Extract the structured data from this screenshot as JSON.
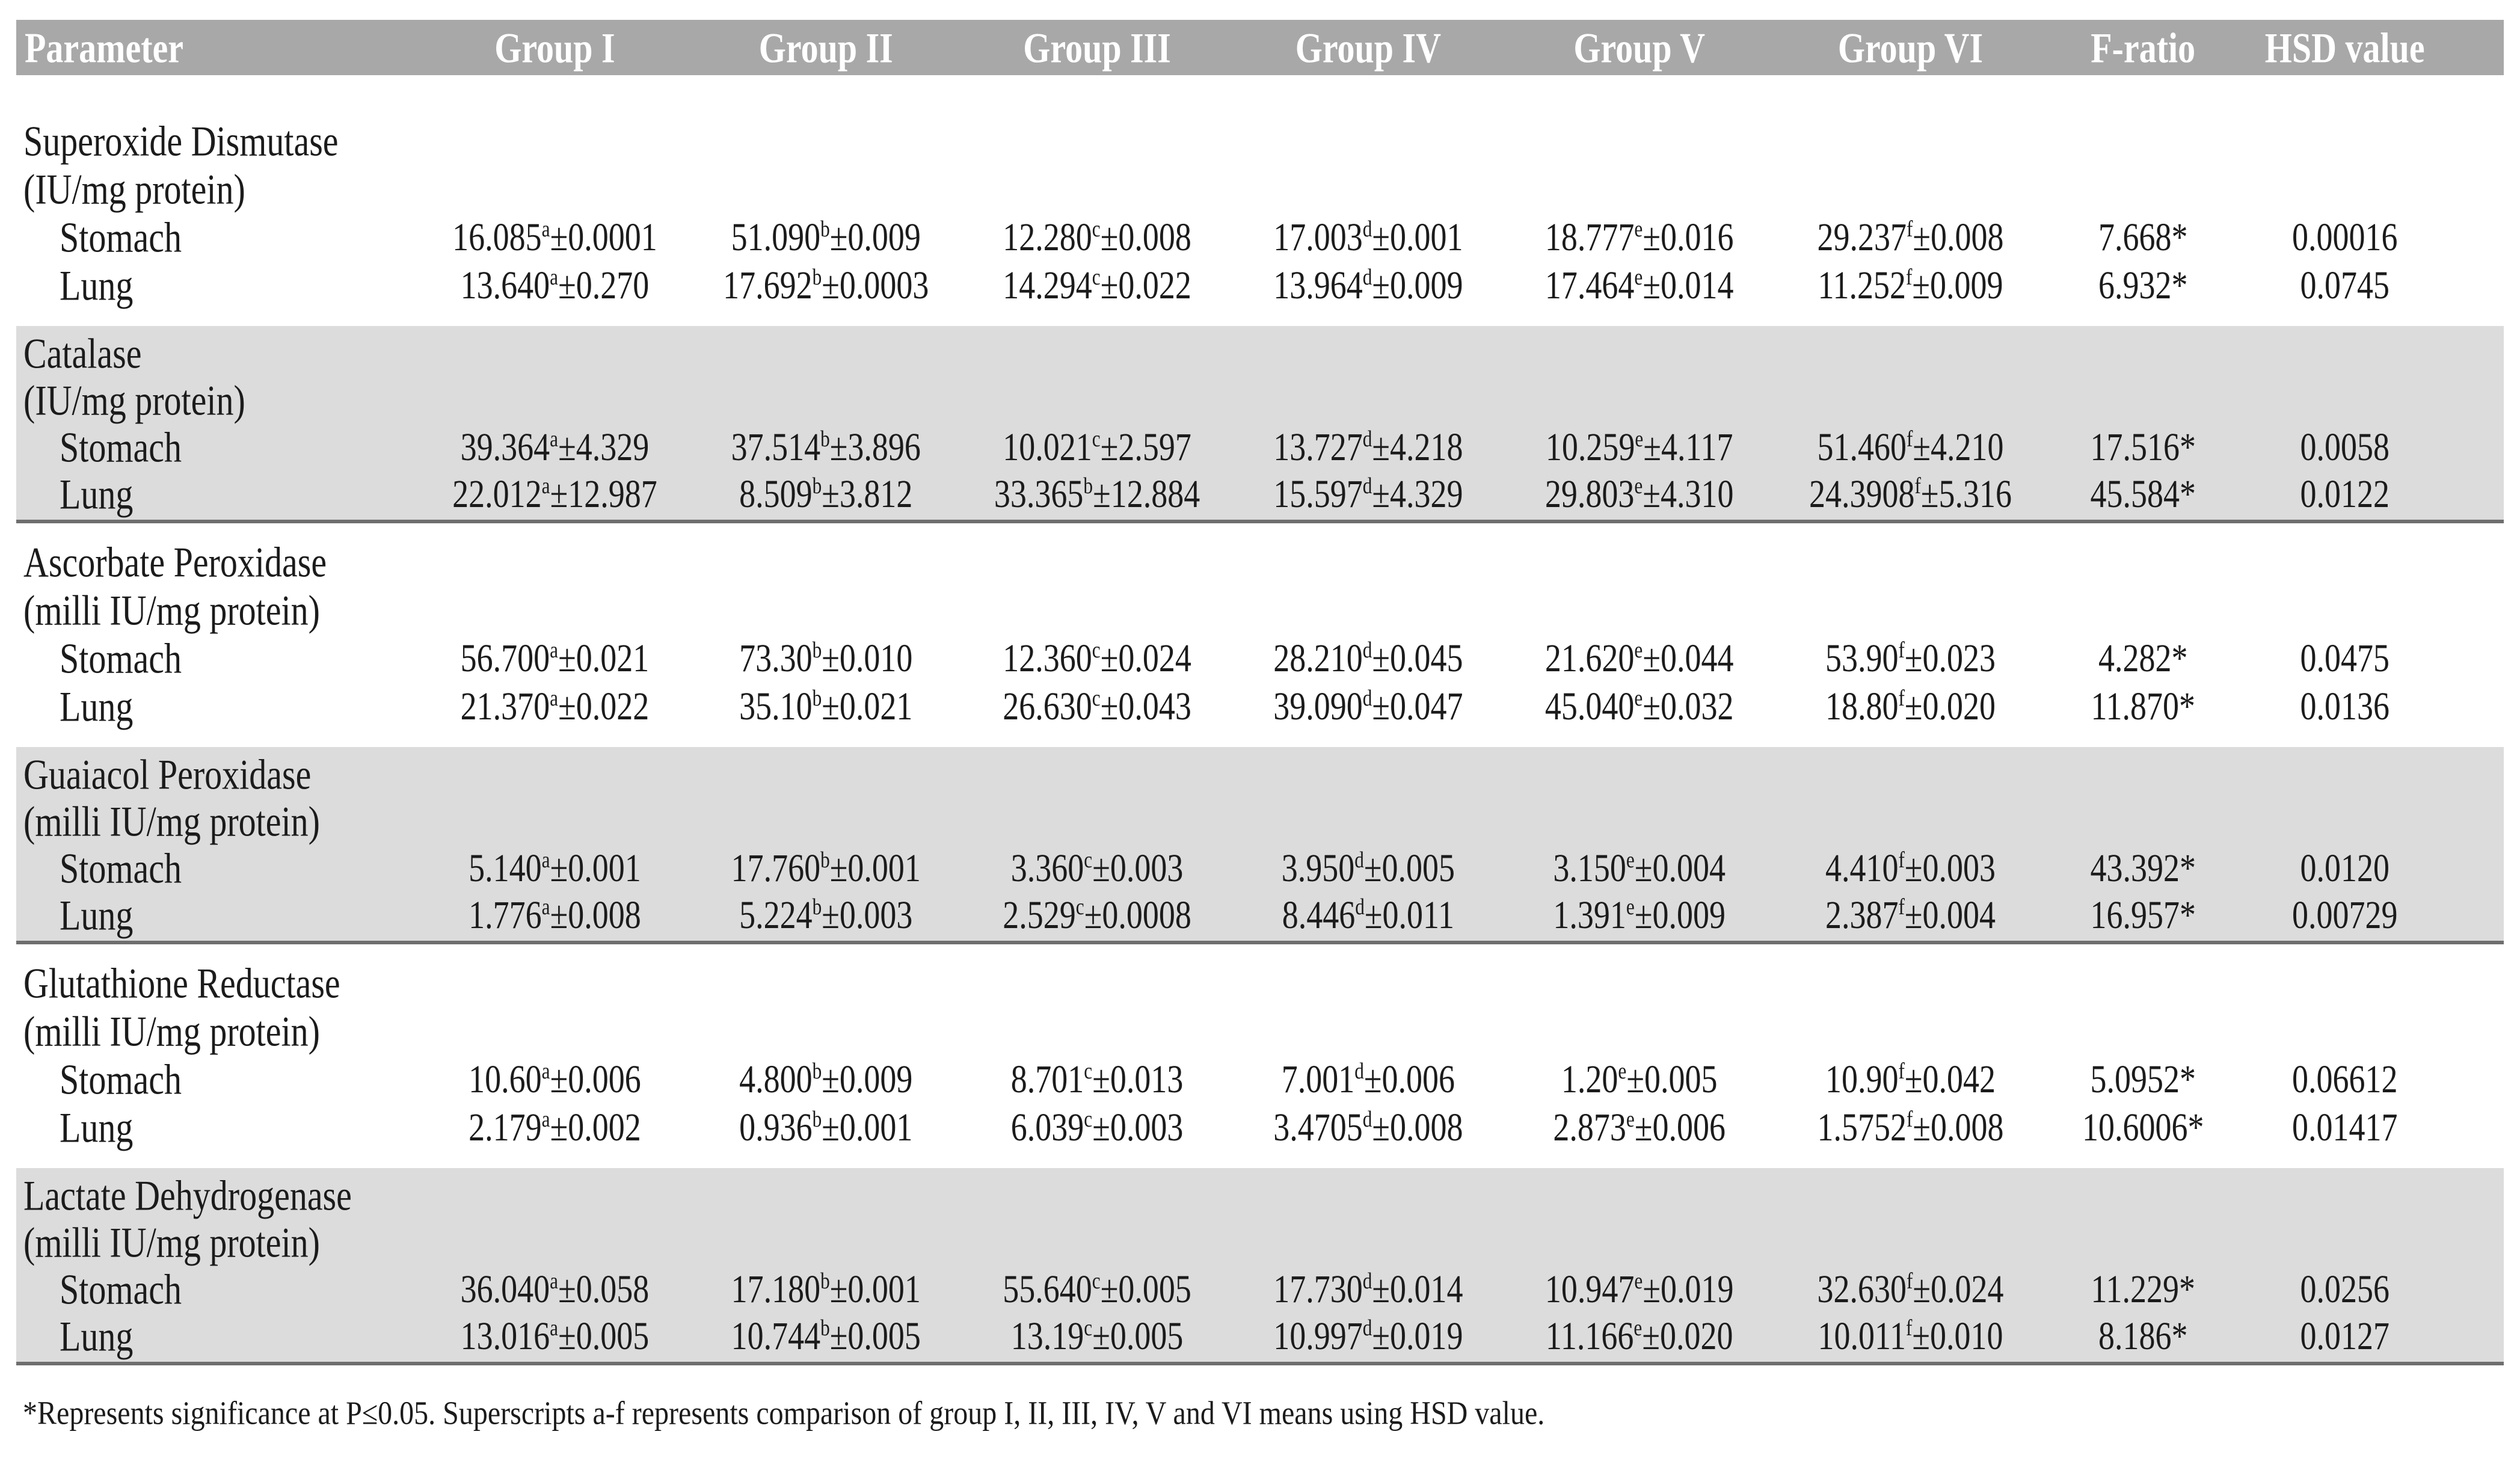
{
  "header": {
    "columns": [
      "Parameter",
      "Group I",
      "Group II",
      "Group III",
      "Group IV",
      "Group V",
      "Group VI",
      "F-ratio",
      "HSD value"
    ]
  },
  "sections": [
    {
      "name": "Superoxide Dismutase",
      "unit": "(IU/mg protein)",
      "shaded": false,
      "rows": [
        {
          "label": "Stomach",
          "values": [
            {
              "mean": "16.085",
              "sup": "a",
              "sd": "±0.0001"
            },
            {
              "mean": "51.090",
              "sup": "b",
              "sd": "±0.009"
            },
            {
              "mean": "12.280",
              "sup": "c",
              "sd": "±0.008"
            },
            {
              "mean": "17.003",
              "sup": "d",
              "sd": "±0.001"
            },
            {
              "mean": "18.777",
              "sup": "e",
              "sd": "±0.016"
            },
            {
              "mean": "29.237",
              "sup": "f",
              "sd": "±0.008"
            }
          ],
          "f_ratio": "7.668*",
          "hsd": "0.00016"
        },
        {
          "label": "Lung",
          "values": [
            {
              "mean": "13.640",
              "sup": "a",
              "sd": "±0.270"
            },
            {
              "mean": "17.692",
              "sup": "b",
              "sd": "±0.0003"
            },
            {
              "mean": "14.294",
              "sup": "c",
              "sd": "±0.022"
            },
            {
              "mean": "13.964",
              "sup": "d",
              "sd": "±0.009"
            },
            {
              "mean": "17.464",
              "sup": "e",
              "sd": "±0.014"
            },
            {
              "mean": "11.252",
              "sup": "f",
              "sd": "±0.009"
            }
          ],
          "f_ratio": "6.932*",
          "hsd": "0.0745"
        }
      ]
    },
    {
      "name": "Catalase",
      "unit": "(IU/mg protein)",
      "shaded": true,
      "rows": [
        {
          "label": "Stomach",
          "values": [
            {
              "mean": "39.364",
              "sup": "a",
              "sd": "±4.329"
            },
            {
              "mean": "37.514",
              "sup": "b",
              "sd": "±3.896"
            },
            {
              "mean": "10.021",
              "sup": "c",
              "sd": "±2.597"
            },
            {
              "mean": "13.727",
              "sup": "d",
              "sd": "±4.218"
            },
            {
              "mean": "10.259",
              "sup": "e",
              "sd": "±4.117"
            },
            {
              "mean": "51.460",
              "sup": "f",
              "sd": "±4.210"
            }
          ],
          "f_ratio": "17.516*",
          "hsd": "0.0058"
        },
        {
          "label": "Lung",
          "values": [
            {
              "mean": "22.012",
              "sup": "a",
              "sd": "±12.987"
            },
            {
              "mean": "8.509",
              "sup": "b",
              "sd": "±3.812"
            },
            {
              "mean": "33.365",
              "sup": "b",
              "sd": "±12.884"
            },
            {
              "mean": "15.597",
              "sup": "d",
              "sd": "±4.329"
            },
            {
              "mean": "29.803",
              "sup": "e",
              "sd": "±4.310"
            },
            {
              "mean": "24.3908",
              "sup": "f",
              "sd": "±5.316"
            }
          ],
          "f_ratio": "45.584*",
          "hsd": "0.0122"
        }
      ]
    },
    {
      "name": "Ascorbate Peroxidase",
      "unit": "(milli IU/mg protein)",
      "shaded": false,
      "rows": [
        {
          "label": "Stomach",
          "values": [
            {
              "mean": "56.700",
              "sup": "a",
              "sd": "±0.021"
            },
            {
              "mean": "73.30",
              "sup": "b",
              "sd": "±0.010"
            },
            {
              "mean": "12.360",
              "sup": "c",
              "sd": "±0.024"
            },
            {
              "mean": "28.210",
              "sup": "d",
              "sd": "±0.045"
            },
            {
              "mean": "21.620",
              "sup": "e",
              "sd": "±0.044"
            },
            {
              "mean": "53.90",
              "sup": "f",
              "sd": "±0.023"
            }
          ],
          "f_ratio": "4.282*",
          "hsd": "0.0475"
        },
        {
          "label": "Lung",
          "values": [
            {
              "mean": "21.370",
              "sup": "a",
              "sd": "±0.022"
            },
            {
              "mean": "35.10",
              "sup": "b",
              "sd": "±0.021"
            },
            {
              "mean": "26.630",
              "sup": "c",
              "sd": "±0.043"
            },
            {
              "mean": "39.090",
              "sup": "d",
              "sd": "±0.047"
            },
            {
              "mean": "45.040",
              "sup": "e",
              "sd": "±0.032"
            },
            {
              "mean": "18.80",
              "sup": "f",
              "sd": "±0.020"
            }
          ],
          "f_ratio": "11.870*",
          "hsd": "0.0136"
        }
      ]
    },
    {
      "name": "Guaiacol Peroxidase",
      "unit": "(milli IU/mg protein)",
      "shaded": true,
      "rows": [
        {
          "label": "Stomach",
          "values": [
            {
              "mean": "5.140",
              "sup": "a",
              "sd": "±0.001"
            },
            {
              "mean": "17.760",
              "sup": "b",
              "sd": "±0.001"
            },
            {
              "mean": "3.360",
              "sup": "c",
              "sd": "±0.003"
            },
            {
              "mean": "3.950",
              "sup": "d",
              "sd": "±0.005"
            },
            {
              "mean": "3.150",
              "sup": "e",
              "sd": "±0.004"
            },
            {
              "mean": "4.410",
              "sup": "f",
              "sd": "±0.003"
            }
          ],
          "f_ratio": "43.392*",
          "hsd": "0.0120"
        },
        {
          "label": "Lung",
          "values": [
            {
              "mean": "1.776",
              "sup": "a",
              "sd": "±0.008"
            },
            {
              "mean": "5.224",
              "sup": "b",
              "sd": "±0.003"
            },
            {
              "mean": "2.529",
              "sup": "c",
              "sd": "±0.0008"
            },
            {
              "mean": "8.446",
              "sup": "d",
              "sd": "±0.011"
            },
            {
              "mean": "1.391",
              "sup": "e",
              "sd": "±0.009"
            },
            {
              "mean": "2.387",
              "sup": "f",
              "sd": "±0.004"
            }
          ],
          "f_ratio": "16.957*",
          "hsd": "0.00729"
        }
      ]
    },
    {
      "name": "Glutathione Reductase",
      "unit": "(milli IU/mg protein)",
      "shaded": false,
      "rows": [
        {
          "label": "Stomach",
          "values": [
            {
              "mean": "10.60",
              "sup": "a",
              "sd": "±0.006"
            },
            {
              "mean": "4.800",
              "sup": "b",
              "sd": "±0.009"
            },
            {
              "mean": "8.701",
              "sup": "c",
              "sd": "±0.013"
            },
            {
              "mean": "7.001",
              "sup": "d",
              "sd": "±0.006"
            },
            {
              "mean": "1.20",
              "sup": "e",
              "sd": "±0.005"
            },
            {
              "mean": "10.90",
              "sup": "f",
              "sd": "±0.042"
            }
          ],
          "f_ratio": "5.0952*",
          "hsd": "0.06612"
        },
        {
          "label": "Lung",
          "values": [
            {
              "mean": "2.179",
              "sup": "a",
              "sd": "±0.002"
            },
            {
              "mean": "0.936",
              "sup": "b",
              "sd": "±0.001"
            },
            {
              "mean": "6.039",
              "sup": "c",
              "sd": "±0.003"
            },
            {
              "mean": "3.4705",
              "sup": "d",
              "sd": "±0.008"
            },
            {
              "mean": "2.873",
              "sup": "e",
              "sd": "±0.006"
            },
            {
              "mean": "1.5752",
              "sup": "f",
              "sd": "±0.008"
            }
          ],
          "f_ratio": "10.6006*",
          "hsd": "0.01417"
        }
      ]
    },
    {
      "name": "Lactate Dehydrogenase",
      "unit": "(milli IU/mg protein)",
      "shaded": true,
      "rows": [
        {
          "label": "Stomach",
          "values": [
            {
              "mean": "36.040",
              "sup": "a",
              "sd": "±0.058"
            },
            {
              "mean": "17.180",
              "sup": "b",
              "sd": "±0.001"
            },
            {
              "mean": "55.640",
              "sup": "c",
              "sd": "±0.005"
            },
            {
              "mean": "17.730",
              "sup": "d",
              "sd": "±0.014"
            },
            {
              "mean": "10.947",
              "sup": "e",
              "sd": "±0.019"
            },
            {
              "mean": "32.630",
              "sup": "f",
              "sd": "±0.024"
            }
          ],
          "f_ratio": "11.229*",
          "hsd": "0.0256"
        },
        {
          "label": "Lung",
          "values": [
            {
              "mean": "13.016",
              "sup": "a",
              "sd": "±0.005"
            },
            {
              "mean": "10.744",
              "sup": "b",
              "sd": "±0.005"
            },
            {
              "mean": "13.19",
              "sup": "c",
              "sd": "±0.005"
            },
            {
              "mean": "10.997",
              "sup": "d",
              "sd": "±0.019"
            },
            {
              "mean": "11.166",
              "sup": "e",
              "sd": "±0.020"
            },
            {
              "mean": "10.011",
              "sup": "f",
              "sd": "±0.010"
            }
          ],
          "f_ratio": "8.186*",
          "hsd": "0.0127"
        }
      ]
    }
  ],
  "footnote": "*Represents significance at P≤0.05. Superscripts a-f represents comparison of group I, II, III, IV, V and VI means using HSD value.",
  "colors": {
    "header_bg": "#a8a8a8",
    "header_text": "#ffffff",
    "shaded_row_bg": "#dcdcdc",
    "section_divider": "#6e6e6e",
    "text": "#1b1b1b",
    "page_bg": "#ffffff"
  }
}
